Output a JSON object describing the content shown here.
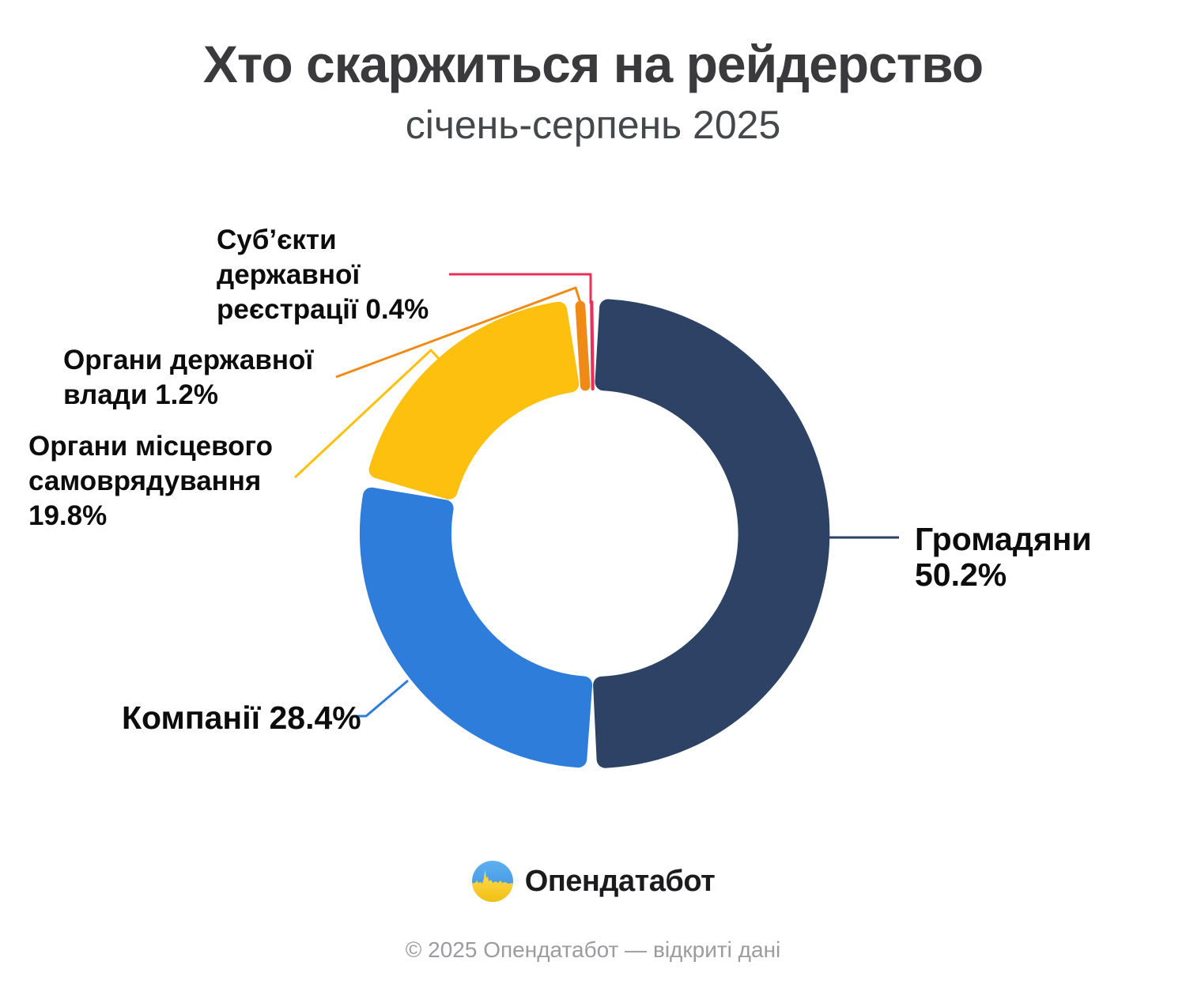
{
  "title": "Хто скаржиться на рейдерство",
  "subtitle": "січень-серпень 2025",
  "chart_data": {
    "type": "pie",
    "variant": "donut",
    "title": "Хто скаржиться на рейдерство",
    "subtitle": "січень-серпень 2025",
    "unit": "%",
    "total": 100,
    "start_angle_deg": 0,
    "direction": "clockwise",
    "legend_position": "callout-labels",
    "segments": [
      {
        "key": "citizens",
        "name": "Громадяни",
        "value": 50.2,
        "color": "#2d4264",
        "label": "Громадяни 50.2%"
      },
      {
        "key": "companies",
        "name": "Компанії",
        "value": 28.4,
        "color": "#2e7ddb",
        "label": "Компанії 28.4%"
      },
      {
        "key": "local-government",
        "name": "Органи місцевого самоврядування",
        "value": 19.8,
        "color": "#fdc00e",
        "label": "Органи місцевого\nсамоврядування\n19.8%"
      },
      {
        "key": "state-authorities",
        "name": "Органи державної влади",
        "value": 1.2,
        "color": "#f08a16",
        "label": "Органи державної\nвлади 1.2%"
      },
      {
        "key": "registration-subjects",
        "name": "Суб’єкти державної реєстрації",
        "value": 0.4,
        "color": "#e8315a",
        "label": "Суб’єкти\nдержавної\nреєстрації 0.4%"
      }
    ]
  },
  "footer": {
    "brand": "Опендатабот",
    "copyright": "© 2025 Опендатабот — відкриті дані"
  }
}
